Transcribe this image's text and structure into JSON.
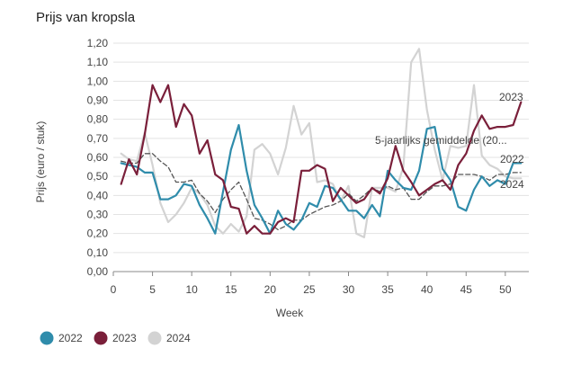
{
  "chart_data": {
    "type": "line",
    "title": "Prijs van kropsla",
    "xlabel": "Week",
    "ylabel": "Prijs (euro / stuk)",
    "xlim": [
      0,
      53
    ],
    "ylim": [
      0,
      1.2
    ],
    "xticks": [
      0,
      5,
      10,
      15,
      20,
      25,
      30,
      35,
      40,
      45,
      50
    ],
    "yticks": [
      0,
      0.1,
      0.2,
      0.3,
      0.4,
      0.5,
      0.6,
      0.7,
      0.8,
      0.9,
      1.0,
      1.1,
      1.2
    ],
    "ytick_labels": [
      "0,00",
      "0,10",
      "0,20",
      "0,30",
      "0,40",
      "0,50",
      "0,60",
      "0,70",
      "0,80",
      "0,90",
      "1,00",
      "1,10",
      "1,20"
    ],
    "grid": true,
    "legend_position": "bottom-left",
    "series": [
      {
        "name": "2022",
        "color": "#2f8cab",
        "dashed": false,
        "end_label": "2022",
        "x": [
          1,
          2,
          3,
          4,
          5,
          6,
          7,
          8,
          9,
          10,
          11,
          12,
          13,
          14,
          15,
          16,
          17,
          18,
          19,
          20,
          21,
          22,
          23,
          24,
          25,
          26,
          27,
          28,
          29,
          30,
          31,
          32,
          33,
          34,
          35,
          36,
          37,
          38,
          39,
          40,
          41,
          42,
          43,
          44,
          45,
          46,
          47,
          48,
          49,
          50,
          51,
          52
        ],
        "y": [
          0.57,
          0.56,
          0.55,
          0.52,
          0.52,
          0.38,
          0.38,
          0.4,
          0.46,
          0.45,
          0.35,
          0.28,
          0.2,
          0.42,
          0.64,
          0.77,
          0.53,
          0.35,
          0.28,
          0.2,
          0.32,
          0.25,
          0.22,
          0.27,
          0.36,
          0.34,
          0.45,
          0.44,
          0.38,
          0.32,
          0.32,
          0.28,
          0.35,
          0.29,
          0.53,
          0.48,
          0.44,
          0.43,
          0.53,
          0.75,
          0.76,
          0.54,
          0.48,
          0.34,
          0.32,
          0.43,
          0.5,
          0.45,
          0.48,
          0.46,
          0.57,
          0.57
        ]
      },
      {
        "name": "2023",
        "color": "#7a1f3a",
        "dashed": false,
        "end_label": "2023",
        "x": [
          1,
          2,
          3,
          4,
          5,
          6,
          7,
          8,
          9,
          10,
          11,
          12,
          13,
          14,
          15,
          16,
          17,
          18,
          19,
          20,
          21,
          22,
          23,
          24,
          25,
          26,
          27,
          28,
          29,
          30,
          31,
          32,
          33,
          34,
          35,
          36,
          37,
          38,
          39,
          40,
          41,
          42,
          43,
          44,
          45,
          46,
          47,
          48,
          49,
          50,
          51,
          52
        ],
        "y": [
          0.46,
          0.59,
          0.51,
          0.72,
          0.98,
          0.89,
          0.98,
          0.76,
          0.88,
          0.82,
          0.62,
          0.69,
          0.51,
          0.48,
          0.34,
          0.33,
          0.2,
          0.24,
          0.2,
          0.2,
          0.26,
          0.28,
          0.26,
          0.53,
          0.53,
          0.56,
          0.54,
          0.37,
          0.44,
          0.4,
          0.36,
          0.38,
          0.44,
          0.41,
          0.49,
          0.66,
          0.53,
          0.47,
          0.4,
          0.43,
          0.46,
          0.48,
          0.43,
          0.56,
          0.62,
          0.74,
          0.82,
          0.75,
          0.76,
          0.76,
          0.77,
          0.89
        ]
      },
      {
        "name": "2024",
        "color": "#d3d3d3",
        "dashed": false,
        "end_label": "2024",
        "x": [
          1,
          2,
          3,
          4,
          5,
          6,
          7,
          8,
          9,
          10,
          11,
          12,
          13,
          14,
          15,
          16,
          17,
          18,
          19,
          20,
          21,
          22,
          23,
          24,
          25,
          26,
          27,
          28,
          29,
          30,
          31,
          32,
          33,
          34,
          35,
          36,
          37,
          38,
          39,
          40,
          41,
          42,
          43,
          44,
          45,
          46,
          47,
          48,
          49,
          50,
          51,
          52
        ],
        "y": [
          0.62,
          0.59,
          0.58,
          0.73,
          0.56,
          0.36,
          0.26,
          0.3,
          0.36,
          0.44,
          0.41,
          0.35,
          0.24,
          0.2,
          0.25,
          0.21,
          0.29,
          0.64,
          0.67,
          0.62,
          0.51,
          0.65,
          0.87,
          0.72,
          0.78,
          0.47,
          0.48,
          0.46,
          0.37,
          0.45,
          0.2,
          0.18,
          0.44,
          0.44,
          0.44,
          0.42,
          0.55,
          1.1,
          1.17,
          0.85,
          0.64,
          0.48,
          0.66,
          0.65,
          0.66,
          0.98,
          0.61,
          0.56,
          0.54,
          0.5,
          0.49,
          0.49
        ]
      },
      {
        "name": "5-jaarlijks gemiddelde (20...",
        "color": "#555555",
        "dashed": true,
        "end_label": "5-jaarlijks gemiddelde (20...",
        "x": [
          1,
          2,
          3,
          4,
          5,
          6,
          7,
          8,
          9,
          10,
          11,
          12,
          13,
          14,
          15,
          16,
          17,
          18,
          19,
          20,
          21,
          22,
          23,
          24,
          25,
          26,
          27,
          28,
          29,
          30,
          31,
          32,
          33,
          34,
          35,
          36,
          37,
          38,
          39,
          40,
          41,
          42,
          43,
          44,
          45,
          46,
          47,
          48,
          49,
          50,
          51,
          52
        ],
        "y": [
          0.58,
          0.57,
          0.57,
          0.62,
          0.62,
          0.58,
          0.55,
          0.47,
          0.47,
          0.48,
          0.41,
          0.37,
          0.31,
          0.38,
          0.43,
          0.47,
          0.38,
          0.28,
          0.27,
          0.25,
          0.22,
          0.24,
          0.27,
          0.27,
          0.3,
          0.32,
          0.34,
          0.35,
          0.37,
          0.41,
          0.37,
          0.4,
          0.44,
          0.42,
          0.45,
          0.43,
          0.44,
          0.38,
          0.38,
          0.42,
          0.45,
          0.45,
          0.46,
          0.51,
          0.51,
          0.51,
          0.5,
          0.48,
          0.51,
          0.51,
          0.52,
          0.52
        ]
      }
    ]
  }
}
